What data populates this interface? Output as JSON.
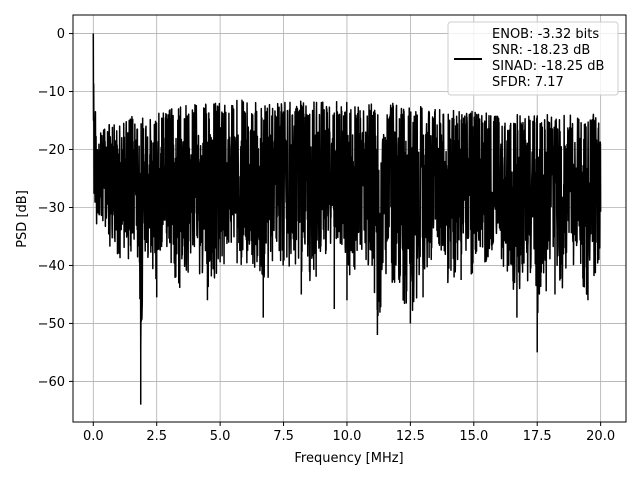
{
  "chart_data": {
    "type": "line",
    "title": "",
    "xlabel": "Frequency [MHz]",
    "ylabel": "PSD [dB]",
    "xlim": [
      -0.8,
      21.0
    ],
    "ylim": [
      -67.0,
      3.2
    ],
    "xticks": [
      0.0,
      2.5,
      5.0,
      7.5,
      10.0,
      12.5,
      15.0,
      17.5,
      20.0
    ],
    "xtick_labels": [
      "0.0",
      "2.5",
      "5.0",
      "7.5",
      "10.0",
      "12.5",
      "15.0",
      "17.5",
      "20.0"
    ],
    "yticks": [
      0,
      -10,
      -20,
      -30,
      -40,
      -50,
      -60
    ],
    "ytick_labels": [
      "0",
      "−10",
      "−20",
      "−30",
      "−40",
      "−50",
      "−60"
    ],
    "grid": true,
    "legend_position": "upper right",
    "legend_lines": [
      "ENOB: -3.32 bits",
      "SNR: -18.23 dB",
      "SINAD: -18.25 dB",
      "SFDR: 7.17"
    ],
    "series_color": "#000000",
    "series": [
      {
        "x": [
          0.0,
          0.02,
          0.05,
          0.1,
          0.15,
          0.2,
          0.3,
          0.4,
          0.5,
          0.6,
          0.8,
          1.0,
          1.2,
          1.4,
          1.6,
          1.8,
          1.87,
          2.0,
          2.2,
          2.5,
          2.8,
          3.0,
          3.5,
          4.0,
          4.5,
          5.0,
          5.5,
          6.0,
          6.5,
          6.7,
          7.0,
          7.5,
          8.0,
          8.5,
          9.0,
          9.5,
          10.0,
          10.5,
          11.0,
          11.2,
          11.5,
          12.0,
          12.5,
          13.0,
          13.5,
          14.0,
          14.5,
          15.0,
          15.5,
          16.0,
          16.5,
          16.7,
          17.0,
          17.5,
          18.0,
          18.5,
          19.0,
          19.5,
          20.0
        ],
        "upper": [
          0.0,
          -7.0,
          -10.0,
          -13.0,
          -15.0,
          -15.5,
          -15.5,
          -16.0,
          -15.0,
          -15.5,
          -14.5,
          -15.0,
          -15.0,
          -14.5,
          -14.0,
          -14.0,
          -14.5,
          -14.0,
          -14.0,
          -13.5,
          -13.0,
          -13.0,
          -12.5,
          -12.0,
          -12.0,
          -12.0,
          -11.5,
          -11.5,
          -12.0,
          -12.0,
          -12.0,
          -11.5,
          -11.5,
          -12.0,
          -11.5,
          -11.5,
          -11.5,
          -12.0,
          -12.0,
          -12.0,
          -12.0,
          -12.0,
          -12.5,
          -12.5,
          -13.0,
          -13.0,
          -13.0,
          -13.5,
          -13.5,
          -14.0,
          -14.0,
          -14.0,
          -14.0,
          -14.0,
          -14.0,
          -14.0,
          -14.0,
          -13.5,
          -13.5
        ],
        "lower": [
          -17.0,
          -30.0,
          -33.0,
          -31.0,
          -36.0,
          -35.0,
          -33.0,
          -35.0,
          -37.0,
          -38.0,
          -40.0,
          -38.0,
          -41.0,
          -39.0,
          -40.0,
          -38.0,
          -64.0,
          -40.0,
          -39.0,
          -45.0,
          -39.0,
          -40.0,
          -45.0,
          -40.0,
          -45.0,
          -40.0,
          -41.0,
          -40.0,
          -41.0,
          -49.0,
          -40.0,
          -41.0,
          -40.0,
          -45.0,
          -42.0,
          -40.0,
          -46.0,
          -41.0,
          -42.0,
          -52.0,
          -42.0,
          -44.0,
          -50.0,
          -42.0,
          -41.0,
          -44.0,
          -40.0,
          -43.0,
          -42.0,
          -40.0,
          -42.0,
          -49.0,
          -40.0,
          -55.0,
          -40.0,
          -45.0,
          -40.0,
          -46.0,
          -39.0
        ],
        "dips": [
          [
            1.87,
            -64.0
          ],
          [
            2.5,
            -45.5
          ],
          [
            4.5,
            -46.0
          ],
          [
            6.7,
            -49.0
          ],
          [
            8.2,
            -45.0
          ],
          [
            9.5,
            -47.5
          ],
          [
            10.0,
            -46.0
          ],
          [
            11.2,
            -52.0
          ],
          [
            12.5,
            -50.0
          ],
          [
            13.0,
            -45.5
          ],
          [
            14.5,
            -42.5
          ],
          [
            16.7,
            -49.0
          ],
          [
            17.5,
            -55.0
          ],
          [
            18.2,
            -45.0
          ],
          [
            19.5,
            -46.0
          ]
        ]
      }
    ]
  }
}
